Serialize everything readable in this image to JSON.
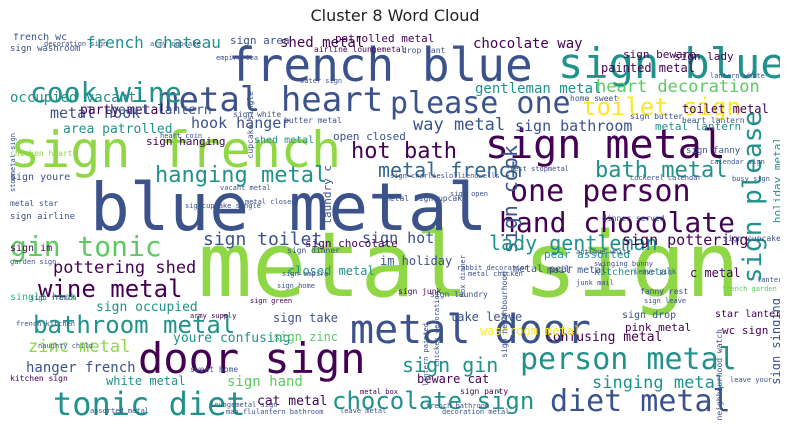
{
  "title": "Cluster 8 Word Cloud",
  "colors": {
    "lime": "#8fd744",
    "purple": "#440154",
    "navy": "#3b528b",
    "teal": "#21918c",
    "green": "#5ec962",
    "yellow": "#fde725",
    "blue": "#31688e",
    "cyan": "#35b779"
  },
  "words": [
    {
      "text": "metal sign",
      "c": "lime"
    },
    {
      "text": "blue metal",
      "c": "navy"
    },
    {
      "text": "sign french",
      "c": "lime"
    },
    {
      "text": "french blue",
      "c": "navy"
    },
    {
      "text": "sign blue",
      "c": "teal"
    },
    {
      "text": "sign metal",
      "c": "purple"
    },
    {
      "text": "metal heart",
      "c": "navy"
    },
    {
      "text": "door sign",
      "c": "purple"
    },
    {
      "text": "metal door",
      "c": "navy"
    },
    {
      "text": "please one",
      "c": "navy"
    },
    {
      "text": "cook wine",
      "c": "teal"
    },
    {
      "text": "one person",
      "c": "purple"
    },
    {
      "text": "hand chocolate",
      "c": "purple"
    },
    {
      "text": "person metal",
      "c": "teal"
    },
    {
      "text": "tonic diet",
      "c": "teal"
    },
    {
      "text": "diet metal",
      "c": "navy"
    },
    {
      "text": "gin tonic",
      "c": "green"
    },
    {
      "text": "wine metal",
      "c": "purple"
    },
    {
      "text": "bathroom metal",
      "c": "teal"
    },
    {
      "text": "chocolate sign",
      "c": "teal"
    },
    {
      "text": "toilet sign",
      "c": "yellow"
    },
    {
      "text": "hanging metal",
      "c": "teal"
    },
    {
      "text": "bath metal",
      "c": "teal"
    },
    {
      "text": "hot bath",
      "c": "purple"
    },
    {
      "text": "metal french",
      "c": "blue"
    },
    {
      "text": "sign please",
      "c": "teal"
    },
    {
      "text": "sign cook",
      "c": "navy"
    },
    {
      "text": "sign toilet",
      "c": "navy"
    },
    {
      "text": "lady gentleman",
      "c": "teal"
    },
    {
      "text": "sign gin",
      "c": "teal"
    },
    {
      "text": "singing metal",
      "c": "teal"
    },
    {
      "text": "heart decoration",
      "c": "green"
    },
    {
      "text": "pottering shed",
      "c": "purple"
    },
    {
      "text": "zinc metal",
      "c": "lime"
    },
    {
      "text": "metal hook",
      "c": "navy"
    },
    {
      "text": "hook hanger",
      "c": "navy"
    },
    {
      "text": "way metal",
      "c": "navy"
    },
    {
      "text": "sign hot",
      "c": "navy"
    },
    {
      "text": "sign bathroom",
      "c": "navy"
    },
    {
      "text": "sign pottering",
      "c": "purple"
    },
    {
      "text": "french chateau",
      "c": "teal"
    },
    {
      "text": "shed metal",
      "c": "purple"
    },
    {
      "text": "occupied vacant",
      "c": "teal"
    },
    {
      "text": "party metal",
      "c": "purple"
    },
    {
      "text": "gentleman metal",
      "c": "teal"
    },
    {
      "text": "chocolate way",
      "c": "purple"
    },
    {
      "text": "patrolled metal",
      "c": "purple"
    },
    {
      "text": "sign area",
      "c": "navy"
    },
    {
      "text": "heart lantern",
      "c": "navy"
    },
    {
      "text": "toilet metal",
      "c": "purple"
    },
    {
      "text": "area patrolled",
      "c": "teal"
    },
    {
      "text": "closed metal",
      "c": "teal"
    },
    {
      "text": "im holiday",
      "c": "navy"
    },
    {
      "text": "sign occupied",
      "c": "teal"
    },
    {
      "text": "hanger french",
      "c": "navy"
    },
    {
      "text": "youre confusing",
      "c": "teal"
    },
    {
      "text": "confusing metal",
      "c": "purple"
    },
    {
      "text": "sign hand",
      "c": "green"
    },
    {
      "text": "white metal",
      "c": "teal"
    },
    {
      "text": "cat metal",
      "c": "purple"
    },
    {
      "text": "beware cat",
      "c": "purple"
    },
    {
      "text": "sign take",
      "c": "navy"
    },
    {
      "text": "take leave",
      "c": "navy"
    },
    {
      "text": "sign zinc",
      "c": "green"
    },
    {
      "text": "painted metal",
      "c": "purple"
    },
    {
      "text": "sign lady",
      "c": "purple"
    },
    {
      "text": "sign beware",
      "c": "purple"
    },
    {
      "text": "metal lantern",
      "c": "teal"
    },
    {
      "text": "holiday metal",
      "c": "teal"
    },
    {
      "text": "c metal",
      "c": "purple"
    },
    {
      "text": "washroom metal",
      "c": "yellow"
    },
    {
      "text": "sign singing",
      "c": "navy"
    },
    {
      "text": "wc sign",
      "c": "purple"
    },
    {
      "text": "star lantern",
      "c": "purple"
    },
    {
      "text": "pink metal",
      "c": "purple"
    },
    {
      "text": "sign drop",
      "c": "navy"
    },
    {
      "text": "kitchen metal",
      "c": "teal"
    },
    {
      "text": "mail metal",
      "c": "navy"
    },
    {
      "text": "metal pear",
      "c": "navy"
    },
    {
      "text": "pear assorted",
      "c": "teal"
    },
    {
      "text": "open closed",
      "c": "navy"
    },
    {
      "text": "sign chocolate",
      "c": "purple"
    },
    {
      "text": "sign hanging",
      "c": "purple"
    },
    {
      "text": "shed metal",
      "c": "teal"
    },
    {
      "text": "french wc",
      "c": "navy"
    },
    {
      "text": "sign washroom",
      "c": "navy"
    },
    {
      "text": "empire tea",
      "c": "navy"
    },
    {
      "text": "airline loungemetal",
      "c": "purple"
    },
    {
      "text": "drop pant",
      "c": "navy"
    },
    {
      "text": "sign youre",
      "c": "navy"
    },
    {
      "text": "sign airline",
      "c": "navy"
    },
    {
      "text": "sign im",
      "c": "purple"
    },
    {
      "text": "garden sign",
      "c": "navy"
    },
    {
      "text": "single hook",
      "c": "cyan"
    },
    {
      "text": "naughty child",
      "c": "navy"
    },
    {
      "text": "kitchen sign",
      "c": "purple"
    },
    {
      "text": "sweet home",
      "c": "navy"
    },
    {
      "text": "army supply",
      "c": "purple"
    },
    {
      "text": "sign junk",
      "c": "purple"
    },
    {
      "text": "sign dinner",
      "c": "navy"
    },
    {
      "text": "sign laundry",
      "c": "navy"
    },
    {
      "text": "metal box",
      "c": "purple"
    },
    {
      "text": "sign party",
      "c": "purple"
    },
    {
      "text": "sign green",
      "c": "purple"
    },
    {
      "text": "sign home",
      "c": "navy"
    },
    {
      "text": "metal star",
      "c": "navy"
    },
    {
      "text": "chicken heart",
      "c": "lime"
    },
    {
      "text": "home sweet",
      "c": "navy"
    },
    {
      "text": "butter metal",
      "c": "navy"
    },
    {
      "text": "sign white",
      "c": "navy"
    },
    {
      "text": "sign butter",
      "c": "navy"
    },
    {
      "text": "heart lantern",
      "c": "navy"
    },
    {
      "text": "sign cupcake",
      "c": "navy"
    },
    {
      "text": "fanny rest",
      "c": "navy"
    },
    {
      "text": "dinner served",
      "c": "navy"
    },
    {
      "text": "sign fanny",
      "c": "navy"
    },
    {
      "text": "metal chicken",
      "c": "navy"
    },
    {
      "text": "loungemetal sign",
      "c": "navy"
    },
    {
      "text": "french bathroom",
      "c": "navy"
    },
    {
      "text": "french kitchen",
      "c": "navy"
    },
    {
      "text": "french garden",
      "c": "green"
    },
    {
      "text": "leave pink",
      "c": "navy"
    },
    {
      "text": "junk mail",
      "c": "navy"
    },
    {
      "text": "lantern hanging",
      "c": "navy"
    },
    {
      "text": "neighbourhood watch",
      "c": "navy"
    },
    {
      "text": "sign neighbourhood",
      "c": "navy"
    },
    {
      "text": "laundry c",
      "c": "navy"
    },
    {
      "text": "rest stopmetal",
      "c": "navy"
    },
    {
      "text": "metal signcupcake",
      "c": "navy"
    },
    {
      "text": "box dinner",
      "c": "navy"
    },
    {
      "text": "cupcake single",
      "c": "navy"
    },
    {
      "text": "stopmetal sign",
      "c": "navy"
    },
    {
      "text": "sign empire",
      "c": "navy"
    },
    {
      "text": "lantern painted",
      "c": "navy"
    },
    {
      "text": "signcupcake single",
      "c": "navy"
    },
    {
      "text": "sign charlieslollienowells",
      "c": "navy"
    },
    {
      "text": "chicken decoration",
      "c": "navy"
    },
    {
      "text": "rabbit decoration",
      "c": "navy"
    },
    {
      "text": "antique white",
      "c": "navy"
    },
    {
      "text": "lantern white",
      "c": "navy"
    },
    {
      "text": "sign open",
      "c": "navy"
    },
    {
      "text": "cockerel calendar",
      "c": "navy"
    },
    {
      "text": "busy sign",
      "c": "navy"
    },
    {
      "text": "vacant metal",
      "c": "navy"
    },
    {
      "text": "heart coin",
      "c": "navy"
    },
    {
      "text": "swinging bunny",
      "c": "navy"
    },
    {
      "text": "metal closed",
      "c": "navy"
    },
    {
      "text": "sign leave",
      "c": "navy"
    },
    {
      "text": "leave metal",
      "c": "navy"
    },
    {
      "text": "decoration metal",
      "c": "navy"
    },
    {
      "text": "lantern bathroom",
      "c": "navy"
    },
    {
      "text": "man flu",
      "c": "navy"
    },
    {
      "text": "assorted metal",
      "c": "navy"
    },
    {
      "text": "sign french",
      "c": "navy"
    },
    {
      "text": "decoration sign",
      "c": "navy"
    },
    {
      "text": "army cupcake",
      "c": "navy"
    },
    {
      "text": "leave your",
      "c": "navy"
    },
    {
      "text": "water sign",
      "c": "navy"
    },
    {
      "text": "calendar sign",
      "c": "navy"
    }
  ]
}
